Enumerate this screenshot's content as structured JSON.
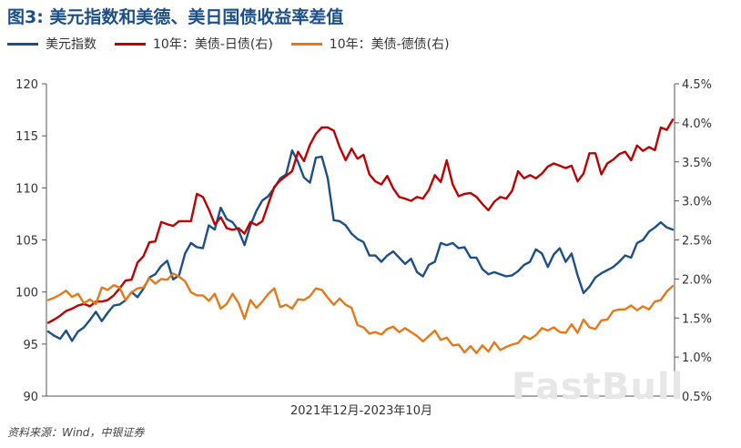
{
  "title": "图3: 美元指数和美德、美日国债收益率差值",
  "source": "资料来源：Wind，中银证券",
  "watermark": "FastBull",
  "chart_data": {
    "type": "line",
    "xlabel": "2021年12月-2023年10月",
    "left_axis": {
      "ylim": [
        90,
        120
      ],
      "ticks": [
        "90",
        "95",
        "100",
        "105",
        "110",
        "115",
        "120"
      ]
    },
    "right_axis": {
      "ylim": [
        0.5,
        4.5
      ],
      "ticks": [
        "0.5%",
        "1.0%",
        "1.5%",
        "2.0%",
        "2.5%",
        "3.0%",
        "3.5%",
        "4.0%",
        "4.5%"
      ]
    },
    "grid": false,
    "legend_position": "top-left",
    "series": [
      {
        "name": "美元指数",
        "axis": "left",
        "color": "#1b4f8a",
        "values": [
          96.2,
          95.8,
          95.5,
          96.3,
          95.3,
          96.2,
          96.6,
          97.3,
          98.1,
          97.2,
          98.0,
          98.7,
          98.8,
          99.2,
          100.0,
          99.5,
          100.3,
          101.4,
          101.7,
          102.5,
          103.0,
          101.2,
          101.6,
          103.7,
          104.7,
          104.3,
          104.2,
          106.4,
          106.0,
          108.1,
          107.0,
          106.7,
          105.9,
          104.5,
          106.4,
          107.8,
          108.8,
          109.2,
          110.0,
          110.9,
          111.3,
          113.6,
          112.5,
          111.0,
          110.5,
          112.9,
          113.0,
          110.9,
          106.9,
          106.8,
          106.4,
          105.6,
          105.1,
          104.8,
          103.5,
          103.5,
          102.9,
          103.5,
          103.9,
          103.3,
          102.7,
          103.2,
          101.9,
          101.5,
          102.6,
          102.9,
          104.7,
          104.5,
          104.7,
          104.2,
          104.3,
          103.3,
          103.3,
          102.2,
          101.7,
          101.9,
          101.7,
          101.5,
          101.6,
          102.0,
          102.6,
          102.9,
          104.1,
          103.7,
          102.4,
          103.6,
          104.2,
          102.9,
          103.7,
          101.6,
          99.9,
          100.5,
          101.4,
          101.8,
          102.1,
          102.4,
          102.9,
          103.5,
          103.3,
          104.7,
          105.0,
          105.8,
          106.2,
          106.7,
          106.2,
          106.0
        ]
      },
      {
        "name": "10年：美债-日债(右)",
        "axis": "right",
        "color": "#c00000",
        "values": [
          1.44,
          1.48,
          1.53,
          1.59,
          1.62,
          1.66,
          1.68,
          1.65,
          1.71,
          1.71,
          1.73,
          1.79,
          1.88,
          1.98,
          1.99,
          2.21,
          2.29,
          2.47,
          2.48,
          2.73,
          2.7,
          2.68,
          2.74,
          2.74,
          2.74,
          3.09,
          3.05,
          2.89,
          2.7,
          2.79,
          2.65,
          2.63,
          2.65,
          2.58,
          2.73,
          2.69,
          2.74,
          2.96,
          3.18,
          3.26,
          3.32,
          3.38,
          3.63,
          3.51,
          3.72,
          3.86,
          3.94,
          3.94,
          3.9,
          3.69,
          3.52,
          3.67,
          3.54,
          3.59,
          3.34,
          3.25,
          3.21,
          3.32,
          3.16,
          3.05,
          3.03,
          3.0,
          3.05,
          3.03,
          3.14,
          3.33,
          3.24,
          3.52,
          3.21,
          3.06,
          3.09,
          3.1,
          3.05,
          2.96,
          2.88,
          2.99,
          3.05,
          3.03,
          3.13,
          3.38,
          3.29,
          3.33,
          3.29,
          3.35,
          3.44,
          3.48,
          3.45,
          3.42,
          3.45,
          3.25,
          3.35,
          3.61,
          3.61,
          3.34,
          3.48,
          3.53,
          3.6,
          3.63,
          3.52,
          3.71,
          3.64,
          3.69,
          3.65,
          3.94,
          3.91,
          4.04
        ]
      },
      {
        "name": "10年：美债-德债(右)",
        "axis": "right",
        "color": "#e77817",
        "values": [
          1.73,
          1.76,
          1.8,
          1.85,
          1.77,
          1.81,
          1.69,
          1.74,
          1.68,
          1.89,
          1.86,
          1.92,
          1.89,
          1.73,
          1.83,
          1.88,
          1.89,
          2.01,
          1.94,
          2.0,
          1.99,
          2.07,
          2.03,
          1.97,
          1.83,
          1.79,
          1.79,
          1.72,
          1.81,
          1.62,
          1.68,
          1.81,
          1.69,
          1.49,
          1.73,
          1.63,
          1.71,
          1.81,
          1.88,
          1.64,
          1.67,
          1.62,
          1.74,
          1.73,
          1.78,
          1.88,
          1.86,
          1.76,
          1.67,
          1.75,
          1.67,
          1.63,
          1.41,
          1.38,
          1.3,
          1.32,
          1.29,
          1.36,
          1.39,
          1.32,
          1.37,
          1.32,
          1.27,
          1.2,
          1.27,
          1.34,
          1.22,
          1.25,
          1.15,
          1.16,
          1.06,
          1.14,
          1.05,
          1.15,
          1.07,
          1.19,
          1.09,
          1.13,
          1.16,
          1.18,
          1.27,
          1.23,
          1.28,
          1.37,
          1.34,
          1.38,
          1.32,
          1.31,
          1.42,
          1.31,
          1.48,
          1.38,
          1.36,
          1.47,
          1.48,
          1.59,
          1.61,
          1.61,
          1.66,
          1.6,
          1.65,
          1.61,
          1.71,
          1.73,
          1.84,
          1.91
        ]
      }
    ]
  }
}
